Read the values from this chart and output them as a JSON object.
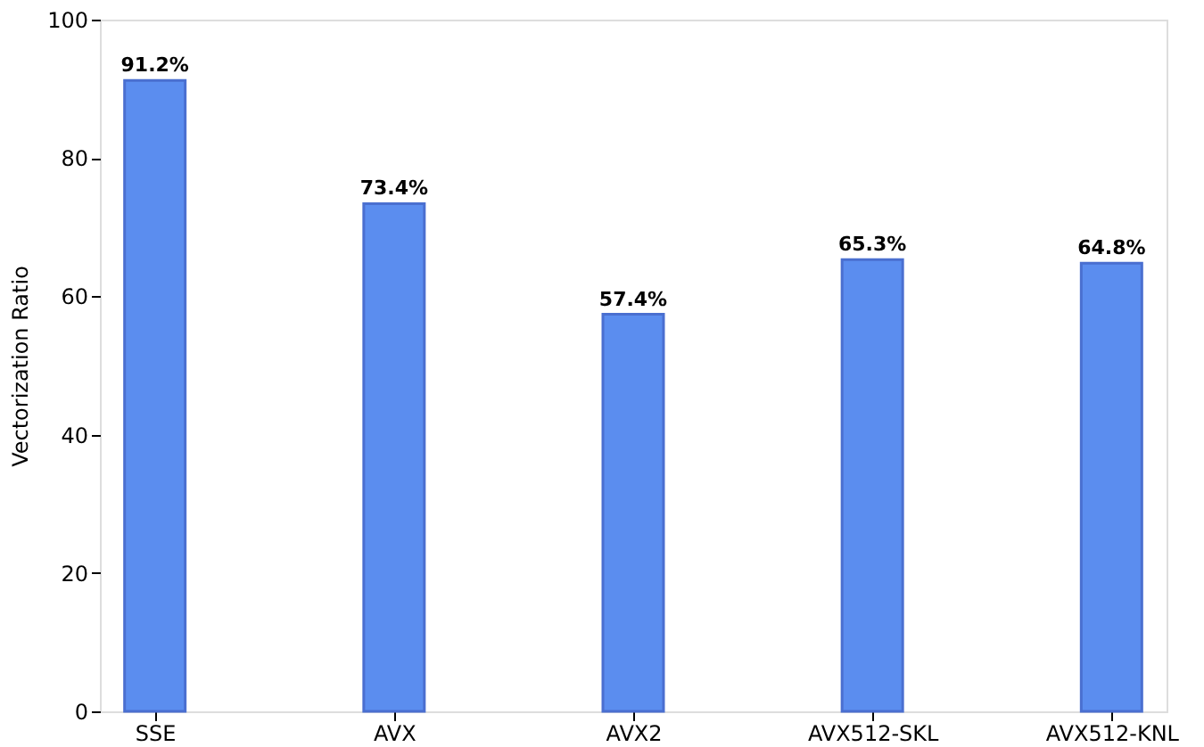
{
  "chart_data": {
    "type": "bar",
    "ylabel": "Vectorization Ratio",
    "categories": [
      "SSE",
      "AVX",
      "AVX2",
      "AVX512-SKL",
      "AVX512-KNL"
    ],
    "values": [
      91.2,
      73.4,
      57.4,
      65.3,
      64.8
    ],
    "value_labels": [
      "91.2%",
      "73.4%",
      "57.4%",
      "65.3%",
      "64.8%"
    ],
    "color": "#5b8def",
    "ylim": [
      0,
      100
    ],
    "yticks": [
      0,
      20,
      40,
      60,
      80,
      100
    ],
    "grid": false
  }
}
